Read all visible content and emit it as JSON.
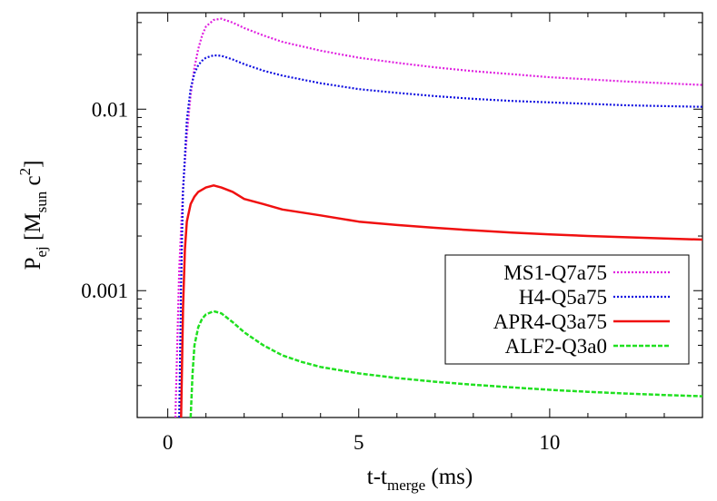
{
  "chart_data": {
    "type": "line",
    "title": "",
    "x_scale": "linear",
    "y_scale": "log",
    "xlim": [
      -0.8,
      14
    ],
    "ylim": [
      0.0002,
      0.034
    ],
    "x_ticks": [
      0,
      5,
      10
    ],
    "x_tick_labels": [
      "0",
      "5",
      "10"
    ],
    "y_ticks": [
      0.001,
      0.01
    ],
    "y_tick_labels": [
      "0.001",
      "0.01"
    ],
    "xlabel": {
      "main": "t-t",
      "sub": "merge",
      "tail": " (ms)"
    },
    "ylabel": {
      "p1": "P",
      "s1": "ej",
      "p2": " [M",
      "s2": "sun",
      "p3": " c",
      "sup": "2",
      "p4": "]"
    },
    "grid": false,
    "legend_position": "right-center",
    "series": [
      {
        "name": "MS1-Q7a75",
        "color": "#e020e0",
        "dash": "dotted",
        "x": [
          0.2,
          0.3,
          0.4,
          0.5,
          0.6,
          0.7,
          0.8,
          0.9,
          1.0,
          1.2,
          1.4,
          1.7,
          2.0,
          2.5,
          3.0,
          4.0,
          5.0,
          6.0,
          7.0,
          8.0,
          9.0,
          10.0,
          11.0,
          12.0,
          13.0,
          14.0
        ],
        "y": [
          0.0002,
          0.0013,
          0.0037,
          0.0072,
          0.012,
          0.017,
          0.0215,
          0.0255,
          0.0285,
          0.031,
          0.0315,
          0.03,
          0.028,
          0.0255,
          0.0235,
          0.021,
          0.0192,
          0.018,
          0.017,
          0.0162,
          0.0156,
          0.015,
          0.0146,
          0.0142,
          0.0139,
          0.0136
        ]
      },
      {
        "name": "H4-Q5a75",
        "color": "#1010e0",
        "dash": "dotted",
        "x": [
          0.3,
          0.35,
          0.4,
          0.5,
          0.6,
          0.7,
          0.8,
          0.9,
          1.0,
          1.2,
          1.4,
          1.7,
          2.0,
          2.5,
          3.0,
          4.0,
          5.0,
          6.0,
          7.0,
          8.0,
          9.0,
          10.0,
          11.0,
          12.0,
          13.0,
          14.0
        ],
        "y": [
          0.0002,
          0.0011,
          0.0035,
          0.0087,
          0.013,
          0.0158,
          0.0175,
          0.0185,
          0.0192,
          0.0198,
          0.0197,
          0.0188,
          0.0177,
          0.0163,
          0.0153,
          0.0139,
          0.0129,
          0.0123,
          0.0118,
          0.0114,
          0.0111,
          0.0109,
          0.0107,
          0.0105,
          0.0104,
          0.0103
        ]
      },
      {
        "name": "APR4-Q3a75",
        "color": "#f01010",
        "dash": "solid",
        "x": [
          0.35,
          0.4,
          0.45,
          0.5,
          0.6,
          0.7,
          0.8,
          1.0,
          1.2,
          1.4,
          1.7,
          2.0,
          2.5,
          3.0,
          4.0,
          5.0,
          6.0,
          7.0,
          8.0,
          9.0,
          10.0,
          11.0,
          12.0,
          13.0,
          14.0
        ],
        "y": [
          0.0002,
          0.0008,
          0.0017,
          0.0024,
          0.003,
          0.0033,
          0.0035,
          0.0037,
          0.0038,
          0.0037,
          0.0035,
          0.0032,
          0.003,
          0.0028,
          0.0026,
          0.0024,
          0.0023,
          0.00222,
          0.00215,
          0.00209,
          0.00204,
          0.002,
          0.00197,
          0.00194,
          0.00191
        ]
      },
      {
        "name": "ALF2-Q3a0",
        "color": "#20e020",
        "dash": "dashed",
        "x": [
          0.6,
          0.65,
          0.7,
          0.8,
          0.9,
          1.0,
          1.2,
          1.4,
          1.7,
          2.0,
          2.5,
          3.0,
          3.5,
          4.0,
          5.0,
          6.0,
          7.0,
          8.0,
          9.0,
          10.0,
          11.0,
          12.0,
          13.0,
          14.0
        ],
        "y": [
          0.0002,
          0.00035,
          0.0005,
          0.00063,
          0.0007,
          0.00074,
          0.00077,
          0.00075,
          0.00067,
          0.00059,
          0.0005,
          0.00044,
          0.000405,
          0.00038,
          0.00035,
          0.00033,
          0.000315,
          0.000303,
          0.000293,
          0.000284,
          0.000277,
          0.000271,
          0.000266,
          0.000262
        ]
      }
    ]
  }
}
